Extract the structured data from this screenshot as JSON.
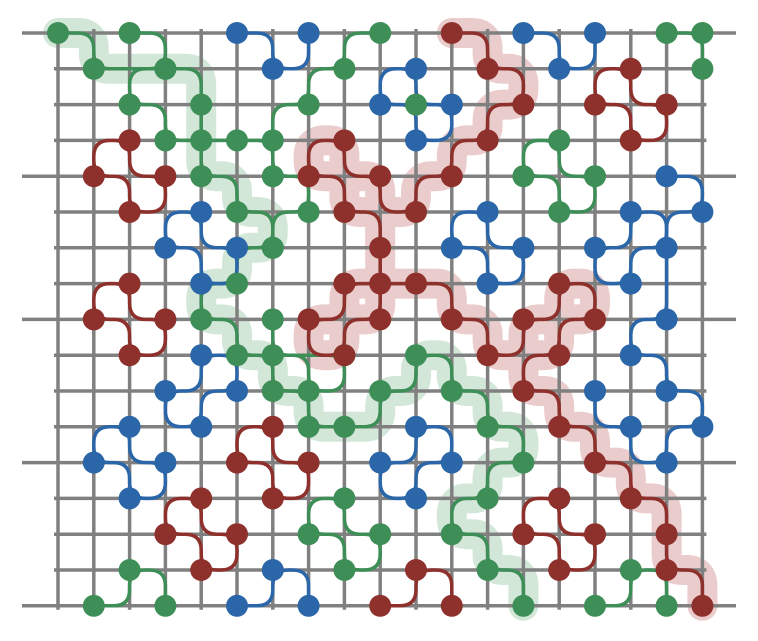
{
  "colors": {
    "background": "#ffffff",
    "grid": "#808080",
    "green": "#3e8e57",
    "blue": "#2b66a8",
    "red": "#8e302b",
    "green_halo": "#d3e7d9",
    "red_halo": "#ebcccc"
  },
  "grid": {
    "columns": 19,
    "rows": 17
  },
  "loops": [
    {
      "color": "green",
      "nodes": [
        [
          0,
          0
        ],
        [
          1,
          1
        ],
        [
          3,
          1
        ],
        [
          4,
          2
        ],
        [
          4,
          3
        ],
        [
          4,
          4
        ],
        [
          5,
          5
        ],
        [
          6,
          6
        ],
        [
          5,
          7
        ],
        [
          4,
          8
        ],
        [
          5,
          9
        ],
        [
          6,
          10
        ],
        [
          7,
          11
        ],
        [
          8,
          11
        ],
        [
          9,
          10
        ],
        [
          10,
          9
        ],
        [
          11,
          10
        ],
        [
          12,
          11
        ],
        [
          13,
          12
        ],
        [
          12,
          13
        ],
        [
          11,
          14
        ],
        [
          12,
          15
        ],
        [
          13,
          16
        ]
      ],
      "closed": false,
      "highlight": true
    },
    {
      "color": "green",
      "nodes": [
        [
          2,
          0
        ],
        [
          3,
          1
        ],
        [
          2,
          2
        ],
        [
          3,
          3
        ],
        [
          5,
          3
        ],
        [
          6,
          4
        ],
        [
          7,
          5
        ],
        [
          6,
          6
        ]
      ],
      "closed": false
    },
    {
      "color": "green",
      "nodes": [
        [
          9,
          0
        ],
        [
          8,
          1
        ],
        [
          7,
          2
        ],
        [
          6,
          3
        ]
      ],
      "closed": false
    },
    {
      "color": "green",
      "nodes": [
        [
          17,
          0
        ],
        [
          18,
          0
        ],
        [
          18,
          1
        ]
      ],
      "closed": false
    },
    {
      "color": "green",
      "nodes": [
        [
          10,
          2
        ]
      ],
      "closed": false
    },
    {
      "color": "green",
      "nodes": [
        [
          14,
          3
        ],
        [
          13,
          4
        ],
        [
          14,
          5
        ],
        [
          15,
          4
        ]
      ],
      "closed": true
    },
    {
      "color": "green",
      "nodes": [
        [
          6,
          8
        ],
        [
          6,
          9
        ],
        [
          7,
          10
        ],
        [
          8,
          9
        ]
      ],
      "closed": true
    },
    {
      "color": "green",
      "nodes": [
        [
          8,
          13
        ],
        [
          7,
          14
        ],
        [
          8,
          15
        ],
        [
          9,
          14
        ]
      ],
      "closed": true
    },
    {
      "color": "green",
      "nodes": [
        [
          1,
          16
        ],
        [
          2,
          15
        ],
        [
          3,
          16
        ]
      ],
      "closed": false
    },
    {
      "color": "green",
      "nodes": [
        [
          15,
          16
        ],
        [
          16,
          15
        ],
        [
          17,
          16
        ]
      ],
      "closed": false
    },
    {
      "color": "blue",
      "nodes": [
        [
          5,
          0
        ],
        [
          6,
          1
        ],
        [
          7,
          0
        ]
      ],
      "closed": false
    },
    {
      "color": "blue",
      "nodes": [
        [
          13,
          0
        ],
        [
          14,
          1
        ],
        [
          15,
          0
        ]
      ],
      "closed": false
    },
    {
      "color": "blue",
      "nodes": [
        [
          10,
          1
        ],
        [
          9,
          2
        ],
        [
          10,
          3
        ],
        [
          11,
          2
        ]
      ],
      "closed": true
    },
    {
      "color": "blue",
      "nodes": [
        [
          4,
          5
        ],
        [
          3,
          6
        ],
        [
          4,
          7
        ],
        [
          5,
          6
        ]
      ],
      "closed": true
    },
    {
      "color": "blue",
      "nodes": [
        [
          12,
          5
        ],
        [
          11,
          6
        ],
        [
          12,
          7
        ],
        [
          13,
          6
        ]
      ],
      "closed": true
    },
    {
      "color": "blue",
      "nodes": [
        [
          16,
          5
        ],
        [
          17,
          6
        ],
        [
          16,
          7
        ],
        [
          15,
          6
        ]
      ],
      "closed": true
    },
    {
      "color": "blue",
      "nodes": [
        [
          17,
          4
        ],
        [
          18,
          5
        ],
        [
          17,
          8
        ],
        [
          16,
          9
        ],
        [
          17,
          10
        ],
        [
          18,
          11
        ],
        [
          17,
          12
        ],
        [
          16,
          11
        ],
        [
          15,
          10
        ]
      ],
      "closed": false
    },
    {
      "color": "blue",
      "nodes": [
        [
          3,
          10
        ],
        [
          4,
          9
        ],
        [
          5,
          10
        ],
        [
          4,
          11
        ]
      ],
      "closed": true
    },
    {
      "color": "blue",
      "nodes": [
        [
          2,
          11
        ],
        [
          1,
          12
        ],
        [
          2,
          13
        ],
        [
          3,
          12
        ]
      ],
      "closed": true
    },
    {
      "color": "blue",
      "nodes": [
        [
          9,
          12
        ],
        [
          10,
          11
        ],
        [
          11,
          12
        ],
        [
          10,
          13
        ]
      ],
      "closed": true
    },
    {
      "color": "blue",
      "nodes": [
        [
          5,
          16
        ],
        [
          6,
          15
        ],
        [
          7,
          16
        ]
      ],
      "closed": false
    },
    {
      "color": "red",
      "nodes": [
        [
          11,
          0
        ],
        [
          12,
          1
        ],
        [
          13,
          2
        ],
        [
          12,
          3
        ],
        [
          11,
          4
        ],
        [
          10,
          5
        ],
        [
          9,
          4
        ],
        [
          8,
          3
        ],
        [
          7,
          4
        ],
        [
          8,
          5
        ],
        [
          9,
          6
        ],
        [
          9,
          7
        ],
        [
          9,
          8
        ],
        [
          8,
          9
        ],
        [
          7,
          8
        ],
        [
          8,
          7
        ],
        [
          10,
          7
        ],
        [
          11,
          8
        ],
        [
          12,
          9
        ],
        [
          13,
          8
        ],
        [
          14,
          7
        ],
        [
          15,
          8
        ],
        [
          14,
          9
        ],
        [
          13,
          10
        ],
        [
          14,
          11
        ],
        [
          15,
          12
        ],
        [
          16,
          13
        ],
        [
          17,
          14
        ],
        [
          17,
          15
        ],
        [
          18,
          16
        ]
      ],
      "closed": false,
      "highlight": true
    },
    {
      "color": "red",
      "nodes": [
        [
          16,
          1
        ],
        [
          15,
          2
        ],
        [
          16,
          3
        ],
        [
          17,
          2
        ]
      ],
      "closed": true
    },
    {
      "color": "red",
      "nodes": [
        [
          2,
          3
        ],
        [
          1,
          4
        ],
        [
          2,
          5
        ],
        [
          3,
          4
        ]
      ],
      "closed": true
    },
    {
      "color": "red",
      "nodes": [
        [
          2,
          7
        ],
        [
          1,
          8
        ],
        [
          2,
          9
        ],
        [
          3,
          8
        ]
      ],
      "closed": true
    },
    {
      "color": "red",
      "nodes": [
        [
          6,
          11
        ],
        [
          5,
          12
        ],
        [
          6,
          13
        ],
        [
          7,
          12
        ]
      ],
      "closed": true
    },
    {
      "color": "red",
      "nodes": [
        [
          4,
          13
        ],
        [
          3,
          14
        ],
        [
          4,
          15
        ],
        [
          5,
          14
        ]
      ],
      "closed": true
    },
    {
      "color": "red",
      "nodes": [
        [
          14,
          13
        ],
        [
          13,
          14
        ],
        [
          14,
          15
        ],
        [
          15,
          14
        ]
      ],
      "closed": true
    },
    {
      "color": "red",
      "nodes": [
        [
          9,
          16
        ],
        [
          10,
          15
        ],
        [
          11,
          16
        ]
      ],
      "closed": false
    }
  ]
}
